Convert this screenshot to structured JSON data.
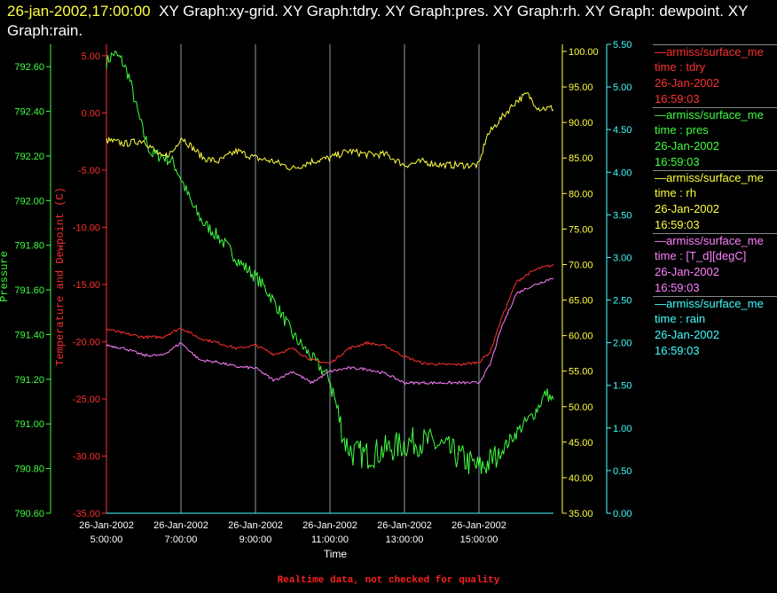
{
  "title": {
    "date": "26-jan-2002,17:00:00",
    "rest": "XY Graph:xy-grid.  XY Graph:tdry.  XY Graph:pres.  XY Graph:rh.  XY Graph: dewpoint.  XY Graph:rain."
  },
  "footer_note": "Realtime data, not checked for quality",
  "legend": [
    {
      "line": "—armiss/surface_me",
      "time": "time : tdry",
      "date": "26-Jan-2002",
      "clock": "16:59:03",
      "color": "#ff3030"
    },
    {
      "line": "—armiss/surface_me",
      "time": "time : pres",
      "date": "26-Jan-2002",
      "clock": "16:59:03",
      "color": "#40ff40"
    },
    {
      "line": "—armiss/surface_me",
      "time": "time : rh",
      "date": "26-Jan-2002",
      "clock": "16:59:03",
      "color": "#ffff40"
    },
    {
      "line": "—armiss/surface_me",
      "time": "time : [T_d][degC]",
      "date": "26-Jan-2002",
      "clock": "16:59:03",
      "color": "#ff80ff"
    },
    {
      "line": "—armiss/surface_me",
      "time": "time : rain",
      "date": "26-Jan-2002",
      "clock": "16:59:03",
      "color": "#40ffff"
    }
  ],
  "chart_data": {
    "type": "line",
    "xlabel": "Time",
    "x_ticks": [
      {
        "h": 5,
        "date": "26-Jan-2002",
        "time": "5:00:00"
      },
      {
        "h": 7,
        "date": "26-Jan-2002",
        "time": "7:00:00"
      },
      {
        "h": 9,
        "date": "26-Jan-2002",
        "time": "9:00:00"
      },
      {
        "h": 11,
        "date": "26-Jan-2002",
        "time": "11:00:00"
      },
      {
        "h": 13,
        "date": "26-Jan-2002",
        "time": "13:00:00"
      },
      {
        "h": 15,
        "date": "26-Jan-2002",
        "time": "15:00:00"
      }
    ],
    "xlim": [
      5,
      17
    ],
    "grid_x": true,
    "axes": {
      "pressure": {
        "label": "Pressure",
        "color": "#40ff40",
        "ylim": [
          790.6,
          792.7
        ],
        "ticks": [
          "790.60",
          "790.80",
          "791.00",
          "791.20",
          "791.40",
          "791.60",
          "791.80",
          "792.00",
          "792.20",
          "792.40",
          "792.60"
        ]
      },
      "temperature": {
        "label": "Temperature and Dewpoint (C)",
        "color": "#ff3030",
        "ylim": [
          -35,
          6
        ],
        "ticks": [
          "-35.00",
          "-30.00",
          "-25.00",
          "-20.00",
          "-15.00",
          "-10.00",
          "-5.00",
          "0.00",
          "5.00"
        ]
      },
      "rh": {
        "label": "",
        "color": "#ffff40",
        "ylim": [
          35,
          101
        ],
        "ticks": [
          "35.00",
          "40.00",
          "45.00",
          "50.00",
          "55.00",
          "60.00",
          "65.00",
          "70.00",
          "75.00",
          "80.00",
          "85.00",
          "90.00",
          "95.00",
          "100.00"
        ]
      },
      "rain": {
        "label": "",
        "color": "#40ffff",
        "ylim": [
          0,
          5.5
        ],
        "ticks": [
          "0.00",
          "0.50",
          "1.00",
          "1.50",
          "2.00",
          "2.50",
          "3.00",
          "3.50",
          "4.00",
          "4.50",
          "5.00",
          "5.50"
        ]
      }
    },
    "series": [
      {
        "name": "pres",
        "axis": "pressure",
        "color": "#40ff40",
        "noise": 0.03,
        "x": [
          5.0,
          5.2,
          5.4,
          5.6,
          5.8,
          6.0,
          6.2,
          6.5,
          6.8,
          7.0,
          7.3,
          7.6,
          8.0,
          8.3,
          8.6,
          9.0,
          9.3,
          9.6,
          10.0,
          10.3,
          10.6,
          11.0,
          11.2,
          11.4,
          11.6,
          12.0,
          12.4,
          12.8,
          13.2,
          13.6,
          14.0,
          14.4,
          14.8,
          15.0,
          15.2,
          15.5,
          16.0,
          16.5,
          16.8,
          17.0
        ],
        "y": [
          792.62,
          792.66,
          792.63,
          792.56,
          792.42,
          792.3,
          792.21,
          792.2,
          792.17,
          792.1,
          791.98,
          791.9,
          791.84,
          791.78,
          791.72,
          791.66,
          791.6,
          791.52,
          791.4,
          791.34,
          791.28,
          791.2,
          791.06,
          790.92,
          790.87,
          790.86,
          790.88,
          790.9,
          790.92,
          790.92,
          790.9,
          790.86,
          790.82,
          790.8,
          790.82,
          790.86,
          790.96,
          791.05,
          791.14,
          791.1
        ]
      },
      {
        "name": "rh",
        "axis": "rh",
        "color": "#ffff40",
        "noise": 0.5,
        "x": [
          5.0,
          5.5,
          6.0,
          6.5,
          6.8,
          7.0,
          7.3,
          7.6,
          8.0,
          8.5,
          9.0,
          9.5,
          10.0,
          10.5,
          11.0,
          11.5,
          12.0,
          12.5,
          13.0,
          13.5,
          14.0,
          14.5,
          15.0,
          15.2,
          15.5,
          16.0,
          16.3,
          16.6,
          17.0
        ],
        "y": [
          87.5,
          87.0,
          87.5,
          85.0,
          86.0,
          88.0,
          86.5,
          85.0,
          84.5,
          86.0,
          85.0,
          84.5,
          83.5,
          84.5,
          85.0,
          86.0,
          85.5,
          85.5,
          84.0,
          84.5,
          84.0,
          84.0,
          84.0,
          88.0,
          90.0,
          93.0,
          94.0,
          92.0,
          92.0
        ]
      },
      {
        "name": "tdry",
        "axis": "temperature",
        "color": "#ff3030",
        "noise": 0.12,
        "x": [
          5.0,
          5.5,
          6.0,
          6.5,
          7.0,
          7.5,
          8.0,
          8.5,
          9.0,
          9.5,
          10.0,
          10.5,
          11.0,
          11.5,
          12.0,
          12.5,
          13.0,
          13.5,
          14.0,
          14.5,
          15.0,
          15.3,
          15.6,
          16.0,
          16.3,
          16.6,
          17.0
        ],
        "y": [
          -18.9,
          -19.3,
          -19.6,
          -19.6,
          -18.8,
          -19.7,
          -20.1,
          -20.6,
          -20.3,
          -21.1,
          -20.6,
          -21.6,
          -21.9,
          -20.6,
          -20.1,
          -20.4,
          -21.3,
          -21.9,
          -22.0,
          -22.0,
          -21.8,
          -20.9,
          -18.0,
          -14.8,
          -14.1,
          -13.6,
          -13.3
        ]
      },
      {
        "name": "dewpoint",
        "axis": "temperature",
        "color": "#ff80ff",
        "noise": 0.12,
        "x": [
          5.0,
          5.5,
          6.0,
          6.5,
          7.0,
          7.5,
          8.0,
          8.5,
          9.0,
          9.5,
          10.0,
          10.5,
          11.0,
          11.5,
          12.0,
          12.5,
          13.0,
          13.5,
          14.0,
          14.5,
          15.0,
          15.3,
          15.6,
          16.0,
          16.3,
          16.6,
          17.0
        ],
        "y": [
          -20.3,
          -20.6,
          -21.2,
          -21.2,
          -20.1,
          -21.6,
          -21.8,
          -22.2,
          -22.3,
          -23.4,
          -22.6,
          -23.6,
          -22.6,
          -22.3,
          -22.4,
          -22.8,
          -23.6,
          -23.6,
          -23.6,
          -23.6,
          -23.6,
          -22.0,
          -18.8,
          -15.8,
          -15.3,
          -14.9,
          -14.4
        ]
      },
      {
        "name": "rain",
        "axis": "rain",
        "color": "#40ffff",
        "noise": 0,
        "x": [
          5.0,
          17.0
        ],
        "y": [
          0.0,
          0.0
        ]
      }
    ]
  }
}
